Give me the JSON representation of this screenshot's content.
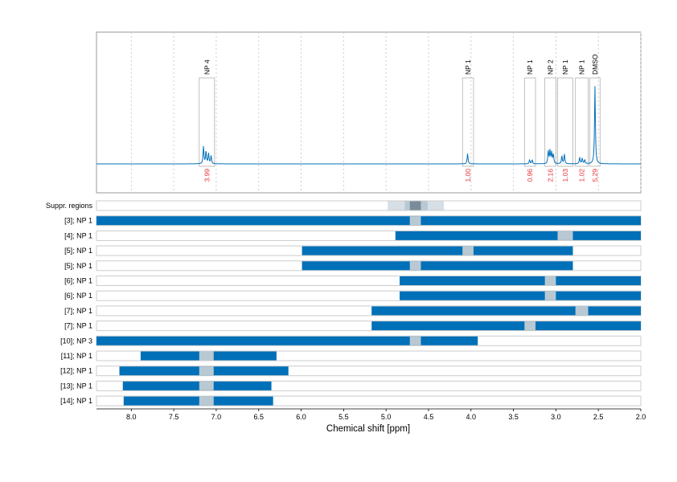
{
  "chart_data": {
    "type": "nmr-spectrum-with-range-bars",
    "xlabel": "Chemical shift [ppm]",
    "xlim": [
      8.41,
      2.0
    ],
    "x_reversed": true,
    "x_ticks": [
      "8.0",
      "7.5",
      "7.0",
      "6.5",
      "6.0",
      "5.5",
      "5.0",
      "4.5",
      "4.0",
      "3.5",
      "3.0",
      "2.5",
      "2.0"
    ],
    "grid": true,
    "colors": {
      "spectrum": "#0070b8",
      "bar": "#0070b8",
      "gap": "#b8c9d3",
      "integral_label": "#e8333a",
      "box": "#b0b0b0"
    },
    "spectrum_peaks": [
      {
        "ppm": 7.15,
        "height": 0.22
      },
      {
        "ppm": 7.12,
        "height": 0.16
      },
      {
        "ppm": 7.09,
        "height": 0.13
      },
      {
        "ppm": 7.06,
        "height": 0.1
      },
      {
        "ppm": 4.04,
        "height": 0.13
      },
      {
        "ppm": 3.31,
        "height": 0.05
      },
      {
        "ppm": 3.28,
        "height": 0.05
      },
      {
        "ppm": 3.09,
        "height": 0.16
      },
      {
        "ppm": 3.07,
        "height": 0.16
      },
      {
        "ppm": 3.05,
        "height": 0.14
      },
      {
        "ppm": 3.03,
        "height": 0.12
      },
      {
        "ppm": 2.93,
        "height": 0.1
      },
      {
        "ppm": 2.9,
        "height": 0.12
      },
      {
        "ppm": 2.72,
        "height": 0.08
      },
      {
        "ppm": 2.69,
        "height": 0.07
      },
      {
        "ppm": 2.66,
        "height": 0.05
      },
      {
        "ppm": 2.54,
        "height": 0.98
      }
    ],
    "integration_regions": [
      {
        "label": "NP 4",
        "from": 7.2,
        "to": 7.02,
        "integral": "3.99"
      },
      {
        "label": "NP 1",
        "from": 4.1,
        "to": 3.97,
        "integral": "1.00"
      },
      {
        "label": "NP 1",
        "from": 3.37,
        "to": 3.24,
        "integral": "0.96"
      },
      {
        "label": "NP 2",
        "from": 3.13,
        "to": 3.0,
        "integral": "2.16"
      },
      {
        "label": "NP 1",
        "from": 2.98,
        "to": 2.8,
        "integral": "1.03"
      },
      {
        "label": "NP 1",
        "from": 2.77,
        "to": 2.62,
        "integral": "1.02"
      },
      {
        "label": "DMSO",
        "from": 2.6,
        "to": 2.48,
        "integral": "5.29"
      }
    ],
    "suppressed_regions": {
      "label": "Suppr. regions",
      "bands": [
        {
          "from": 4.98,
          "to": 4.32,
          "level": "light",
          "color": "#d6dfe6"
        },
        {
          "from": 4.78,
          "to": 4.51,
          "level": "medium",
          "color": "#b8c9d3"
        },
        {
          "from": 4.72,
          "to": 4.59,
          "level": "dark",
          "color": "#7a8c99"
        }
      ]
    },
    "rows": [
      {
        "label": "[3]; NP 1",
        "from": 8.41,
        "to": 2.0,
        "gap": [
          4.72,
          4.59
        ]
      },
      {
        "label": "[4]; NP 1",
        "from": 4.89,
        "to": 2.0,
        "gap": [
          2.98,
          2.8
        ]
      },
      {
        "label": "[5]; NP 1",
        "from": 5.99,
        "to": 2.8,
        "gap": [
          4.1,
          3.97
        ]
      },
      {
        "label": "[5]; NP 1",
        "from": 5.99,
        "to": 2.8,
        "gap": [
          4.72,
          4.59
        ]
      },
      {
        "label": "[6]; NP 1",
        "from": 4.84,
        "to": 2.0,
        "gap": [
          3.13,
          3.0
        ]
      },
      {
        "label": "[6]; NP 1",
        "from": 4.84,
        "to": 2.0,
        "gap": [
          3.13,
          3.0
        ]
      },
      {
        "label": "[7]; NP 1",
        "from": 5.17,
        "to": 2.0,
        "gap": [
          2.77,
          2.62
        ]
      },
      {
        "label": "[7]; NP 1",
        "from": 5.17,
        "to": 2.0,
        "gap": [
          3.37,
          3.24
        ]
      },
      {
        "label": "[10]; NP 3",
        "from": 8.41,
        "to": 3.92,
        "gap": [
          4.72,
          4.59
        ]
      },
      {
        "label": "[11]; NP 1",
        "from": 7.89,
        "to": 6.29,
        "gap": [
          7.2,
          7.03
        ]
      },
      {
        "label": "[12]; NP 1",
        "from": 8.14,
        "to": 6.15,
        "gap": [
          7.2,
          7.03
        ]
      },
      {
        "label": "[13]; NP 1",
        "from": 8.1,
        "to": 6.35,
        "gap": [
          7.2,
          7.03
        ]
      },
      {
        "label": "[14]; NP 1",
        "from": 8.09,
        "to": 6.33,
        "gap": [
          7.2,
          7.03
        ]
      }
    ]
  }
}
